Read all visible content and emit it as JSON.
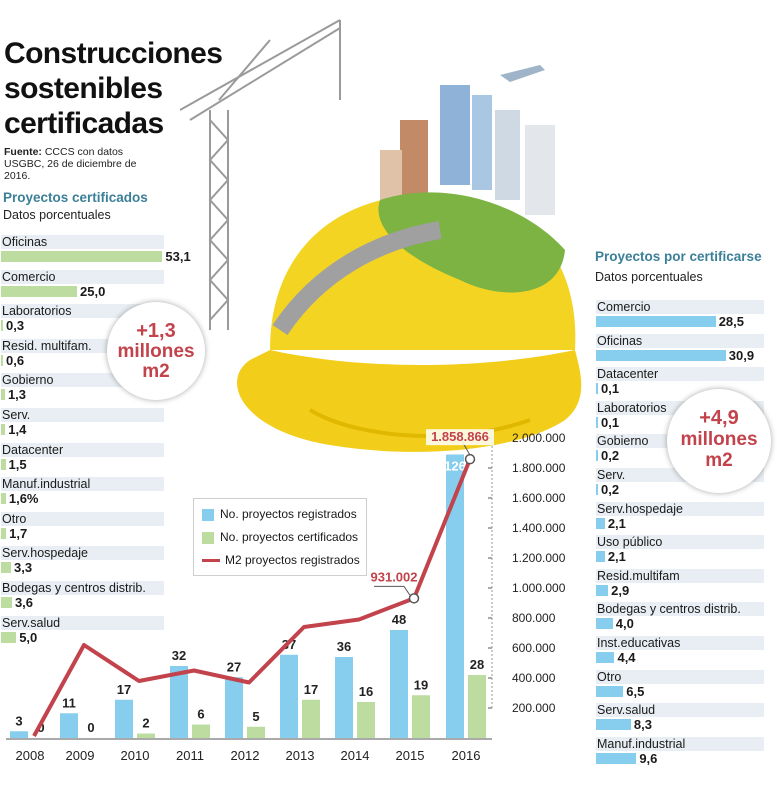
{
  "title": "Construcciones sostenibles certificadas",
  "source": {
    "label": "Fuente:",
    "text": "CCCS con datos USGBC, 26 de diciembre de 2016."
  },
  "colors": {
    "blue": "#86cdee",
    "green": "#bcdca0",
    "line": "#c2434b",
    "title_blue": "#3b7f98",
    "row_bg": "#e8eef3"
  },
  "left_panel": {
    "title": "Proyectos certificados",
    "subtitle": "Datos porcentuales",
    "items": [
      {
        "label": "Oficinas",
        "value": "53,1",
        "pct": 53.1
      },
      {
        "label": "Comercio",
        "value": "25,0",
        "pct": 25.0
      },
      {
        "label": "Laboratorios",
        "value": "0,3",
        "pct": 0.3
      },
      {
        "label": "Resid. multifam.",
        "value": "0,6",
        "pct": 0.6
      },
      {
        "label": "Gobierno",
        "value": "1,3",
        "pct": 1.3
      },
      {
        "label": "Serv.",
        "value": "1,4",
        "pct": 1.4
      },
      {
        "label": "Datacenter",
        "value": "1,5",
        "pct": 1.5
      },
      {
        "label": "Manuf.industrial",
        "value": "1,6%",
        "pct": 1.6
      },
      {
        "label": "Otro",
        "value": "1,7",
        "pct": 1.7
      },
      {
        "label": "Serv.hospedaje",
        "value": "3,3",
        "pct": 3.3
      },
      {
        "label": "Bodegas y centros distrib.",
        "value": "3,6",
        "pct": 3.6
      },
      {
        "label": "Serv.salud",
        "value": "5,0",
        "pct": 5.0
      }
    ],
    "badge": {
      "line1": "+1,3",
      "line2": "millones",
      "line3": "m2"
    }
  },
  "right_panel": {
    "title": "Proyectos por certificarse",
    "subtitle": "Datos porcentuales",
    "items": [
      {
        "label": "Comercio",
        "value": "28,5",
        "pct": 28.5
      },
      {
        "label": "Oficinas",
        "value": "30,9",
        "pct": 30.9
      },
      {
        "label": "Datacenter",
        "value": "0,1",
        "pct": 0.1
      },
      {
        "label": "Laboratorios",
        "value": "0,1",
        "pct": 0.1
      },
      {
        "label": "Gobierno",
        "value": "0,2",
        "pct": 0.2
      },
      {
        "label": "Serv.",
        "value": "0,2",
        "pct": 0.2
      },
      {
        "label": "Serv.hospedaje",
        "value": "2,1",
        "pct": 2.1
      },
      {
        "label": "Uso público",
        "value": "2,1",
        "pct": 2.1
      },
      {
        "label": "Resid.multifam",
        "value": "2,9",
        "pct": 2.9
      },
      {
        "label": "Bodegas y centros distrib.",
        "value": "4,0",
        "pct": 4.0
      },
      {
        "label": "Inst.educativas",
        "value": "4,4",
        "pct": 4.4
      },
      {
        "label": "Otro",
        "value": "6,5",
        "pct": 6.5
      },
      {
        "label": "Serv.salud",
        "value": "8,3",
        "pct": 8.3
      },
      {
        "label": "Manuf.industrial",
        "value": "9,6",
        "pct": 9.6
      }
    ],
    "badge": {
      "line1": "+4,9",
      "line2": "millones",
      "line3": "m2"
    }
  },
  "chart_data": {
    "type": "bar",
    "categories": [
      "2008",
      "2009",
      "2010",
      "2011",
      "2012",
      "2013",
      "2014",
      "2015",
      "2016"
    ],
    "series": [
      {
        "name": "No. proyectos registrados",
        "values": [
          3,
          11,
          17,
          32,
          27,
          37,
          36,
          48,
          126
        ]
      },
      {
        "name": "No. proyectos certificados",
        "values": [
          0,
          0,
          2,
          6,
          5,
          17,
          16,
          19,
          28
        ]
      },
      {
        "name": "M2 proyectos registrados",
        "type": "line",
        "values": [
          0,
          620000,
          380000,
          450000,
          370000,
          740000,
          790000,
          931002,
          1858866
        ]
      }
    ],
    "annotations": [
      {
        "category": "2015",
        "series": "M2 proyectos registrados",
        "text": "931.002"
      },
      {
        "category": "2016",
        "series": "M2 proyectos registrados",
        "text": "1.858.866"
      }
    ],
    "y2_ticks": [
      "200.000",
      "400.000",
      "600.000",
      "800.000",
      "1.000.000",
      "1.200.000",
      "1.400.000",
      "1.600.000",
      "1.800.000",
      "2.000.000"
    ],
    "y2lim": [
      0,
      2000000
    ],
    "legend": "center-left"
  }
}
